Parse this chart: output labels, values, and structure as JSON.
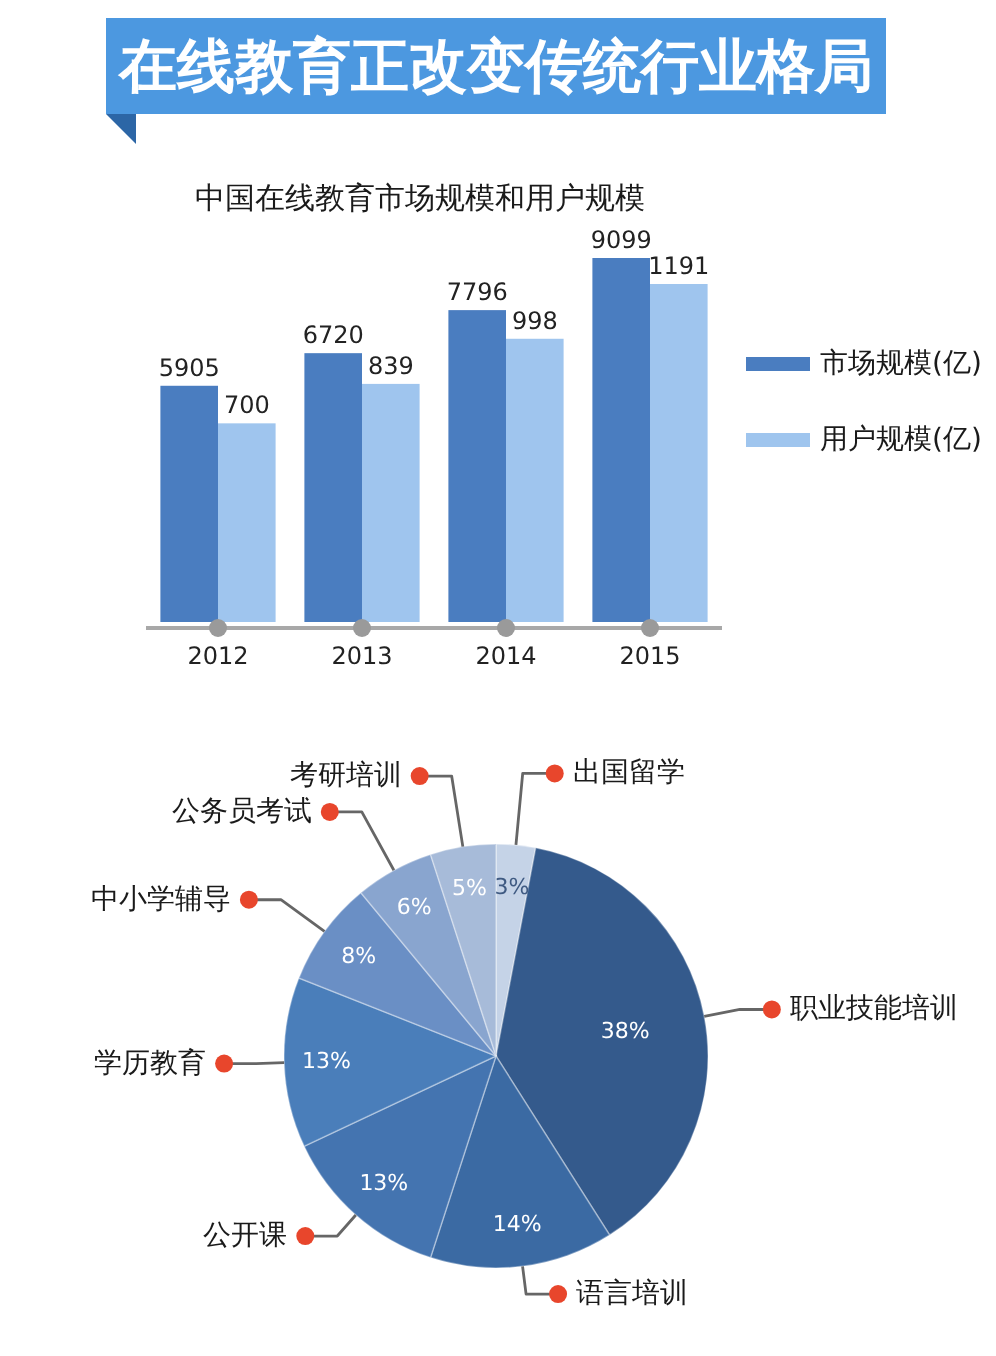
{
  "chart_data": [
    {
      "type": "bar",
      "title": "在线教育正改变传统行业格局",
      "subtitle": "中国在线教育市场规模和用户规模",
      "categories": [
        "2012",
        "2013",
        "2014",
        "2015"
      ],
      "series": [
        {
          "name": "市场规模(亿)",
          "color": "#4a7dc0",
          "values": [
            5905,
            6720,
            7796,
            9099
          ]
        },
        {
          "name": "用户规模(亿)",
          "color": "#9fc5ee",
          "values": [
            700,
            839,
            998,
            1191
          ],
          "axis": "y2"
        }
      ],
      "tick_labels": "x",
      "data_labels": true,
      "legend": "right"
    },
    {
      "type": "pie",
      "categories": [
        "出国留学",
        "职业技能培训",
        "语言培训",
        "公开课",
        "学历教育",
        "中小学辅导",
        "公务员考试",
        "考研培训"
      ],
      "values": [
        3,
        38,
        14,
        13,
        13,
        8,
        6,
        5
      ],
      "colors": [
        "#c5d3e7",
        "#345a8c",
        "#3b6aa3",
        "#4474b0",
        "#4a7eba",
        "#6a8fc5",
        "#89a5cf",
        "#a7bbd9"
      ],
      "value_labels": [
        "3%",
        "38%",
        "14%",
        "13%",
        "13%",
        "8%",
        "6%",
        "5%"
      ]
    }
  ]
}
